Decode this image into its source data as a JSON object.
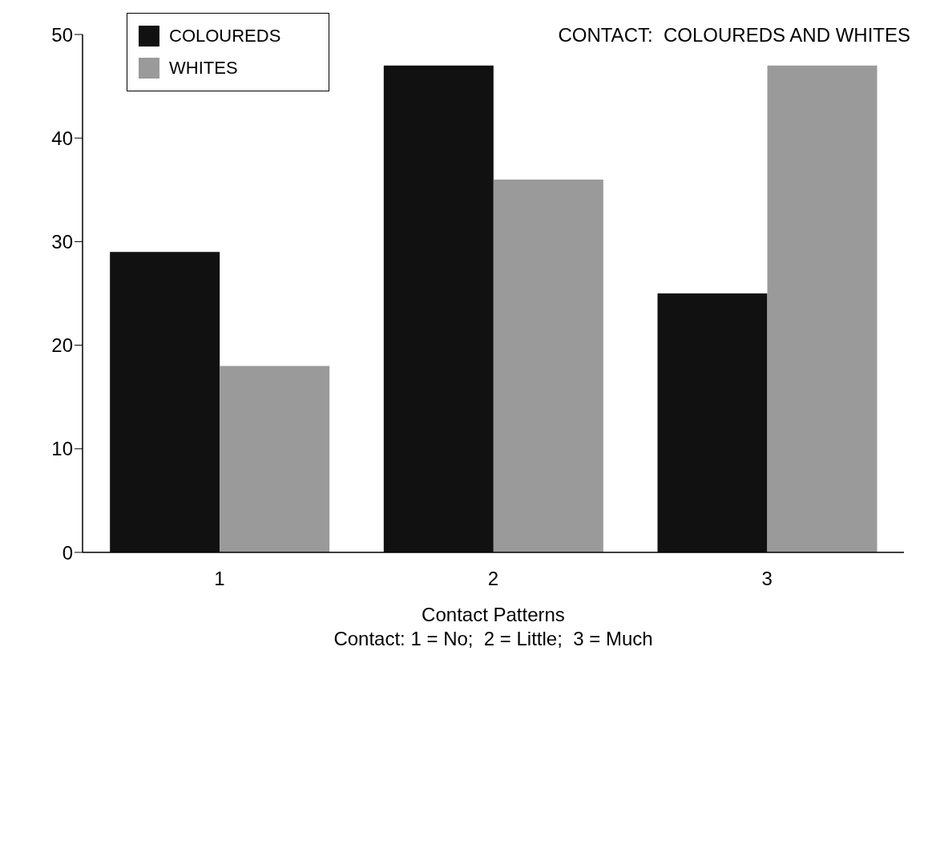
{
  "chart_data": {
    "type": "bar",
    "title": "CONTACT:  COLOUREDS AND WHITES",
    "xlabel": "Contact Patterns",
    "annotations": [
      "Contact: 1 = No;  2 = Little;  3 = Much"
    ],
    "categories": [
      "1",
      "2",
      "3"
    ],
    "series": [
      {
        "name": "COLOUREDS",
        "color": "#111111",
        "values": [
          29,
          47,
          25
        ]
      },
      {
        "name": "WHITES",
        "color": "#9a9a9a",
        "values": [
          18,
          36,
          47
        ]
      }
    ],
    "ylim": [
      0,
      50
    ],
    "yticks": [
      0,
      10,
      20,
      30,
      40,
      50
    ],
    "grid": false,
    "legend": "top left"
  }
}
